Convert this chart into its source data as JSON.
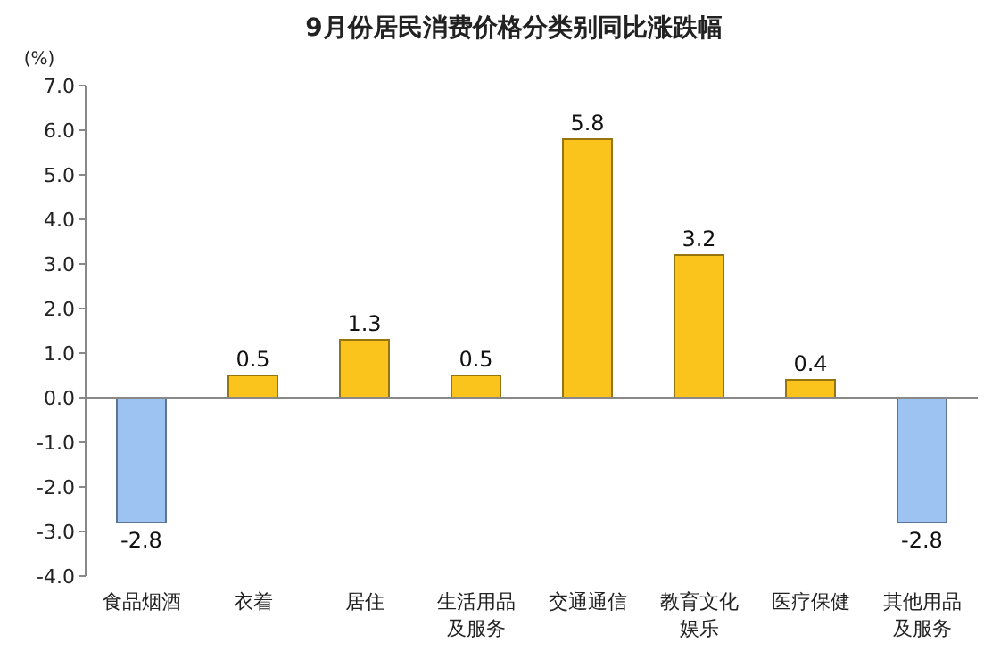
{
  "chart_data": {
    "type": "bar",
    "title": "9月份居民消费价格分类别同比涨跌幅",
    "ylabel": "(%)",
    "categories": [
      "食品烟酒",
      "衣着",
      "居住",
      "生活用品及服务",
      "交通通信",
      "教育文化娱乐",
      "医疗保健",
      "其他用品及服务"
    ],
    "values": [
      -2.8,
      0.5,
      1.3,
      0.5,
      5.8,
      3.2,
      0.4,
      -2.8
    ],
    "colors": [
      "#9cc3f2",
      "#fbc41d",
      "#fbc41d",
      "#fbc41d",
      "#fbc41d",
      "#fbc41d",
      "#fbc41d",
      "#9cc3f2"
    ],
    "ylim": [
      -4,
      7
    ],
    "yticks": [
      {
        "value": -4,
        "label": "-4.0"
      },
      {
        "value": -3,
        "label": "-3.0"
      },
      {
        "value": -2,
        "label": "-2.0"
      },
      {
        "value": -1,
        "label": "-1.0"
      },
      {
        "value": 0,
        "label": "0.0"
      },
      {
        "value": 1,
        "label": "1.0"
      },
      {
        "value": 2,
        "label": "2.0"
      },
      {
        "value": 3,
        "label": "3.0"
      },
      {
        "value": 4,
        "label": "4.0"
      },
      {
        "value": 5,
        "label": "5.0"
      },
      {
        "value": 6,
        "label": "6.0"
      },
      {
        "value": 7,
        "label": "7.0"
      }
    ],
    "data_labels": true
  }
}
